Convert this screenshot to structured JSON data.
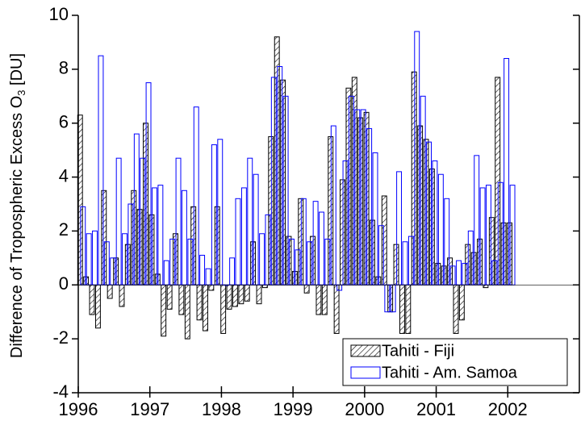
{
  "chart_data": {
    "type": "bar",
    "y_label": [
      "Difference of Tropospheric Excess O",
      "3",
      " [DU]"
    ],
    "x": [
      1996.042,
      1996.125,
      1996.208,
      1996.292,
      1996.375,
      1996.458,
      1996.542,
      1996.625,
      1996.708,
      1996.792,
      1996.875,
      1996.958,
      1997.042,
      1997.125,
      1997.208,
      1997.292,
      1997.375,
      1997.458,
      1997.542,
      1997.625,
      1997.708,
      1997.792,
      1997.875,
      1997.958,
      1998.042,
      1998.125,
      1998.208,
      1998.292,
      1998.375,
      1998.458,
      1998.542,
      1998.625,
      1998.708,
      1998.792,
      1998.875,
      1998.958,
      1999.042,
      1999.125,
      1999.208,
      1999.292,
      1999.375,
      1999.458,
      1999.542,
      1999.625,
      1999.708,
      1999.792,
      1999.875,
      1999.958,
      2000.042,
      2000.125,
      2000.208,
      2000.292,
      2000.375,
      2000.458,
      2000.542,
      2000.625,
      2000.708,
      2000.792,
      2000.875,
      2000.958,
      2001.042,
      2001.125,
      2001.208,
      2001.292,
      2001.375,
      2001.458,
      2001.542,
      2001.625,
      2001.708,
      2001.792,
      2001.875,
      2001.958,
      2002.042
    ],
    "series": [
      {
        "name": "Tahiti - Fiji",
        "color": "#000000",
        "pattern": "hatch",
        "values": [
          6.3,
          0.3,
          -1.1,
          -1.6,
          3.5,
          -0.5,
          1.0,
          -0.8,
          1.5,
          3.5,
          2.8,
          6.0,
          2.6,
          0.4,
          -1.9,
          -0.9,
          1.9,
          -1.1,
          -2.0,
          2.9,
          -1.3,
          -1.7,
          -0.2,
          2.9,
          -1.8,
          -0.9,
          -0.8,
          -0.7,
          -0.6,
          1.6,
          -0.7,
          -0.1,
          5.5,
          9.2,
          7.6,
          1.8,
          0.5,
          3.2,
          -0.3,
          1.8,
          -1.1,
          -1.1,
          5.5,
          -1.8,
          3.9,
          7.3,
          7.7,
          6.2,
          6.4,
          2.4,
          0.3,
          3.3,
          -1.0,
          1.5,
          -1.8,
          -1.8,
          7.9,
          5.9,
          5.4,
          4.3,
          0.8,
          0.7,
          1.0,
          -1.8,
          -1.3,
          1.5,
          1.2,
          1.7,
          -0.1,
          2.5,
          7.7,
          2.3,
          2.3
        ]
      },
      {
        "name": "Tahiti - Am. Samoa",
        "color": "#0000ff",
        "pattern": "outline",
        "values": [
          2.9,
          1.9,
          2.0,
          8.5,
          1.6,
          1.0,
          4.7,
          1.9,
          3.0,
          5.6,
          4.7,
          7.5,
          3.6,
          3.7,
          0.9,
          1.7,
          4.7,
          3.5,
          1.7,
          6.6,
          1.1,
          0.6,
          5.2,
          5.4,
          0.0,
          1.0,
          3.2,
          3.6,
          4.7,
          4.1,
          1.9,
          2.6,
          7.7,
          8.1,
          7.0,
          1.7,
          1.3,
          3.2,
          1.6,
          3.1,
          2.7,
          1.7,
          5.9,
          -0.2,
          4.6,
          7.0,
          6.5,
          6.5,
          5.8,
          4.9,
          2.2,
          -1.0,
          -1.0,
          4.2,
          1.6,
          1.8,
          9.4,
          7.0,
          5.3,
          4.6,
          4.1,
          3.2,
          0.7,
          0.9,
          0.8,
          2.0,
          4.8,
          3.6,
          3.7,
          0.9,
          3.8,
          8.4,
          3.7
        ]
      }
    ],
    "xlim": [
      1996,
      2003
    ],
    "xticks": [
      1996,
      1997,
      1998,
      1999,
      2000,
      2001,
      2002
    ],
    "ylim": [
      -4,
      10
    ],
    "yticks": [
      -4,
      -2,
      0,
      2,
      4,
      6,
      8,
      10
    ],
    "legend": "lower right"
  }
}
